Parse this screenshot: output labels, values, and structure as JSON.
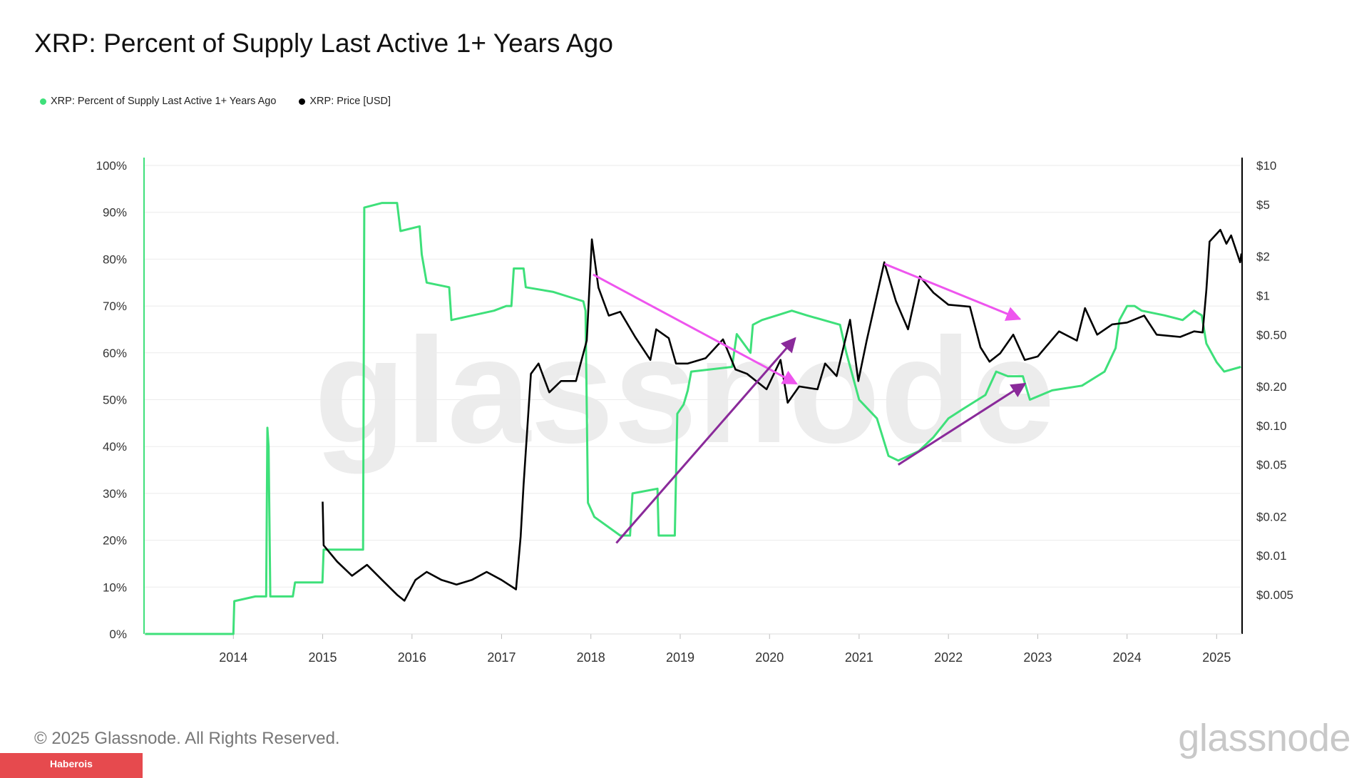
{
  "title": "XRP: Percent of Supply Last Active 1+ Years Ago",
  "legend": [
    {
      "label": "XRP: Percent of Supply Last Active 1+ Years Ago",
      "color": "#3ee07a"
    },
    {
      "label": "XRP: Price [USD]",
      "color": "#000000"
    }
  ],
  "watermark": "glassnode",
  "footer": {
    "copyright": "© 2025 Glassnode. All Rights Reserved.",
    "logo_text": "glassnode",
    "badge": "Haberois"
  },
  "colors": {
    "supply": "#3ee07a",
    "price": "#000000",
    "arrow_pink": "#ee55ee",
    "arrow_purple": "#8a2a9a",
    "badge": "#e64a4e"
  },
  "chart_data": {
    "type": "line",
    "x_axis": {
      "type": "date",
      "range": [
        "2013-01-01",
        "2025-04-15"
      ],
      "ticks": [
        "2014",
        "2015",
        "2016",
        "2017",
        "2018",
        "2019",
        "2020",
        "2021",
        "2022",
        "2023",
        "2024",
        "2025"
      ]
    },
    "y_left": {
      "range": [
        0,
        100
      ],
      "unit": "%",
      "ticks": [
        "0%",
        "10%",
        "20%",
        "30%",
        "40%",
        "50%",
        "60%",
        "70%",
        "80%",
        "90%",
        "100%"
      ]
    },
    "y_right": {
      "scale": "log",
      "range": [
        0.0025,
        10
      ],
      "ticks": [
        {
          "value": 10,
          "label": "$10"
        },
        {
          "value": 5,
          "label": "$5"
        },
        {
          "value": 2,
          "label": "$2"
        },
        {
          "value": 1,
          "label": "$1"
        },
        {
          "value": 0.5,
          "label": "$0.50"
        },
        {
          "value": 0.2,
          "label": "$0.20"
        },
        {
          "value": 0.1,
          "label": "$0.10"
        },
        {
          "value": 0.05,
          "label": "$0.05"
        },
        {
          "value": 0.02,
          "label": "$0.02"
        },
        {
          "value": 0.01,
          "label": "$0.01"
        },
        {
          "value": 0.005,
          "label": "$0.005"
        }
      ]
    },
    "grid": true,
    "series": [
      {
        "axis": "left",
        "points": [
          [
            "2013-01-05",
            0
          ],
          [
            "2014-01-01",
            0
          ],
          [
            "2014-01-05",
            7
          ],
          [
            "2014-04-01",
            8
          ],
          [
            "2014-05-15",
            8
          ],
          [
            "2014-05-20",
            44
          ],
          [
            "2014-05-25",
            40
          ],
          [
            "2014-06-01",
            8
          ],
          [
            "2014-09-01",
            8
          ],
          [
            "2014-09-10",
            11
          ],
          [
            "2014-12-31",
            11
          ],
          [
            "2015-01-05",
            18
          ],
          [
            "2015-06-15",
            18
          ],
          [
            "2015-06-20",
            91
          ],
          [
            "2015-09-01",
            92
          ],
          [
            "2015-11-01",
            92
          ],
          [
            "2015-11-15",
            86
          ],
          [
            "2016-02-01",
            87
          ],
          [
            "2016-02-10",
            81
          ],
          [
            "2016-03-01",
            75
          ],
          [
            "2016-06-01",
            74
          ],
          [
            "2016-06-10",
            67
          ],
          [
            "2016-12-01",
            69
          ],
          [
            "2017-01-20",
            70
          ],
          [
            "2017-02-10",
            70
          ],
          [
            "2017-02-20",
            78
          ],
          [
            "2017-04-01",
            78
          ],
          [
            "2017-04-10",
            74
          ],
          [
            "2017-08-01",
            73
          ],
          [
            "2017-10-01",
            72
          ],
          [
            "2017-12-01",
            71
          ],
          [
            "2017-12-10",
            69
          ],
          [
            "2017-12-20",
            28
          ],
          [
            "2018-01-15",
            25
          ],
          [
            "2018-05-01",
            21
          ],
          [
            "2018-06-10",
            21
          ],
          [
            "2018-06-20",
            30
          ],
          [
            "2018-09-30",
            31
          ],
          [
            "2018-10-05",
            21
          ],
          [
            "2018-12-10",
            21
          ],
          [
            "2018-12-20",
            47
          ],
          [
            "2019-01-15",
            49
          ],
          [
            "2019-02-01",
            52
          ],
          [
            "2019-02-15",
            56
          ],
          [
            "2019-08-01",
            57
          ],
          [
            "2019-08-20",
            64
          ],
          [
            "2019-10-15",
            60
          ],
          [
            "2019-10-25",
            66
          ],
          [
            "2019-12-01",
            67
          ],
          [
            "2020-02-01",
            68
          ],
          [
            "2020-04-01",
            69
          ],
          [
            "2020-06-01",
            68
          ],
          [
            "2020-10-15",
            66
          ],
          [
            "2020-11-10",
            60
          ],
          [
            "2021-01-01",
            50
          ],
          [
            "2021-03-15",
            46
          ],
          [
            "2021-05-01",
            38
          ],
          [
            "2021-06-10",
            37
          ],
          [
            "2021-09-01",
            39
          ],
          [
            "2021-11-01",
            42
          ],
          [
            "2022-01-01",
            46
          ],
          [
            "2022-03-01",
            48
          ],
          [
            "2022-06-01",
            51
          ],
          [
            "2022-07-15",
            56
          ],
          [
            "2022-09-01",
            55
          ],
          [
            "2022-11-01",
            55
          ],
          [
            "2022-11-30",
            50
          ],
          [
            "2023-03-01",
            52
          ],
          [
            "2023-07-01",
            53
          ],
          [
            "2023-10-01",
            56
          ],
          [
            "2023-11-15",
            61
          ],
          [
            "2023-12-01",
            67
          ],
          [
            "2024-01-01",
            70
          ],
          [
            "2024-02-01",
            70
          ],
          [
            "2024-03-01",
            69
          ],
          [
            "2024-06-01",
            68
          ],
          [
            "2024-08-15",
            67
          ],
          [
            "2024-10-01",
            69
          ],
          [
            "2024-11-01",
            68
          ],
          [
            "2024-11-20",
            62
          ],
          [
            "2025-01-01",
            58
          ],
          [
            "2025-02-01",
            56
          ],
          [
            "2025-04-10",
            57
          ]
        ]
      },
      {
        "axis": "right",
        "points": [
          [
            "2015-01-01",
            0.026
          ],
          [
            "2015-01-05",
            0.012
          ],
          [
            "2015-03-01",
            0.009
          ],
          [
            "2015-05-01",
            0.007
          ],
          [
            "2015-07-01",
            0.0085
          ],
          [
            "2015-09-01",
            0.0065
          ],
          [
            "2015-11-01",
            0.005
          ],
          [
            "2015-12-01",
            0.0045
          ],
          [
            "2016-01-15",
            0.0065
          ],
          [
            "2016-03-01",
            0.0075
          ],
          [
            "2016-05-01",
            0.0065
          ],
          [
            "2016-07-01",
            0.006
          ],
          [
            "2016-09-01",
            0.0065
          ],
          [
            "2016-11-01",
            0.0075
          ],
          [
            "2017-01-01",
            0.0065
          ],
          [
            "2017-03-01",
            0.0055
          ],
          [
            "2017-03-20",
            0.014
          ],
          [
            "2017-04-01",
            0.035
          ],
          [
            "2017-05-01",
            0.25
          ],
          [
            "2017-06-01",
            0.3
          ],
          [
            "2017-07-15",
            0.18
          ],
          [
            "2017-09-01",
            0.22
          ],
          [
            "2017-11-01",
            0.22
          ],
          [
            "2017-12-15",
            0.45
          ],
          [
            "2018-01-05",
            2.7
          ],
          [
            "2018-02-01",
            1.15
          ],
          [
            "2018-03-15",
            0.7
          ],
          [
            "2018-05-01",
            0.75
          ],
          [
            "2018-07-01",
            0.48
          ],
          [
            "2018-09-01",
            0.32
          ],
          [
            "2018-09-25",
            0.55
          ],
          [
            "2018-11-15",
            0.47
          ],
          [
            "2018-12-15",
            0.3
          ],
          [
            "2019-02-01",
            0.3
          ],
          [
            "2019-04-15",
            0.33
          ],
          [
            "2019-06-25",
            0.46
          ],
          [
            "2019-08-15",
            0.27
          ],
          [
            "2019-10-01",
            0.25
          ],
          [
            "2019-12-20",
            0.19
          ],
          [
            "2020-02-15",
            0.32
          ],
          [
            "2020-03-15",
            0.15
          ],
          [
            "2020-05-01",
            0.2
          ],
          [
            "2020-07-15",
            0.19
          ],
          [
            "2020-08-15",
            0.3
          ],
          [
            "2020-10-01",
            0.24
          ],
          [
            "2020-11-25",
            0.65
          ],
          [
            "2020-12-29",
            0.22
          ],
          [
            "2021-02-01",
            0.45
          ],
          [
            "2021-04-14",
            1.8
          ],
          [
            "2021-06-01",
            0.9
          ],
          [
            "2021-07-20",
            0.55
          ],
          [
            "2021-09-06",
            1.4
          ],
          [
            "2021-11-01",
            1.05
          ],
          [
            "2022-01-01",
            0.85
          ],
          [
            "2022-03-30",
            0.82
          ],
          [
            "2022-05-12",
            0.4
          ],
          [
            "2022-06-18",
            0.31
          ],
          [
            "2022-08-01",
            0.36
          ],
          [
            "2022-09-23",
            0.5
          ],
          [
            "2022-11-09",
            0.32
          ],
          [
            "2023-01-01",
            0.34
          ],
          [
            "2023-03-29",
            0.53
          ],
          [
            "2023-06-10",
            0.45
          ],
          [
            "2023-07-13",
            0.8
          ],
          [
            "2023-09-01",
            0.5
          ],
          [
            "2023-11-01",
            0.6
          ],
          [
            "2024-01-01",
            0.62
          ],
          [
            "2024-03-11",
            0.7
          ],
          [
            "2024-05-01",
            0.5
          ],
          [
            "2024-08-05",
            0.48
          ],
          [
            "2024-10-01",
            0.53
          ],
          [
            "2024-11-05",
            0.52
          ],
          [
            "2024-11-20",
            1.1
          ],
          [
            "2024-12-03",
            2.6
          ],
          [
            "2025-01-16",
            3.2
          ],
          [
            "2025-02-10",
            2.5
          ],
          [
            "2025-03-01",
            2.9
          ],
          [
            "2025-04-07",
            1.8
          ],
          [
            "2025-04-12",
            2.1
          ]
        ]
      }
    ],
    "annotations": [
      {
        "type": "arrow",
        "color": "pink",
        "from": [
          "2018-01-10",
          1.45
        ],
        "to": [
          "2020-04-20",
          0.21
        ]
      },
      {
        "type": "arrow",
        "color": "purple",
        "from": [
          "2018-04-15",
          0.0125
        ],
        "to": [
          "2020-04-15",
          0.47
        ]
      },
      {
        "type": "arrow",
        "color": "pink",
        "from": [
          "2021-04-15",
          1.75
        ],
        "to": [
          "2022-10-20",
          0.66
        ]
      },
      {
        "type": "arrow",
        "color": "purple",
        "from": [
          "2021-06-10",
          0.05
        ],
        "to": [
          "2022-11-10",
          0.21
        ]
      }
    ]
  }
}
